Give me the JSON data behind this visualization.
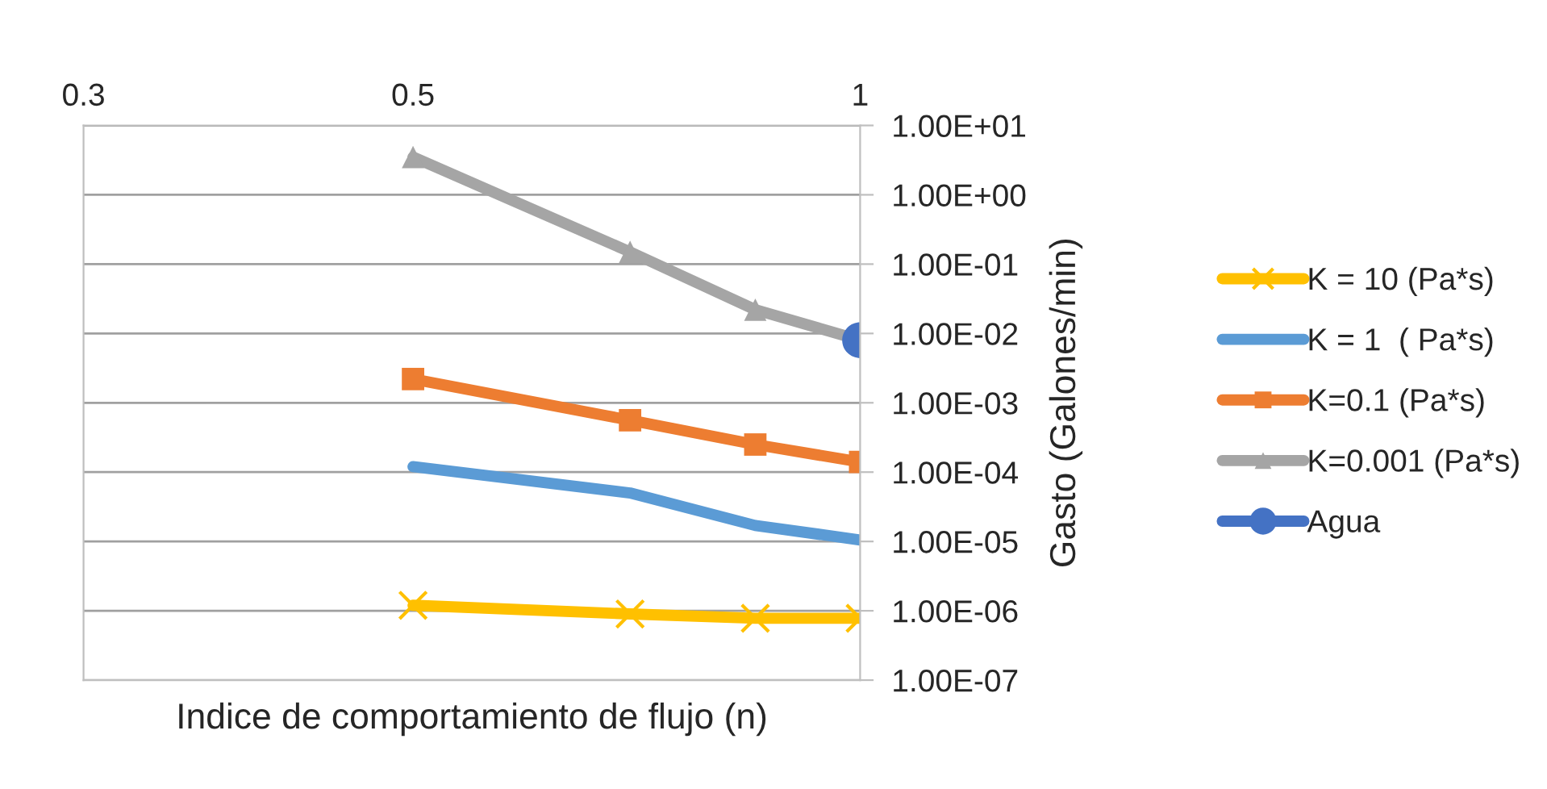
{
  "chart_data": {
    "type": "line",
    "xlabel": "Indice de comportamiento de flujo (n)",
    "ylabel": "Gasto (Galones/min)",
    "log": "xy",
    "xlim": [
      0.3,
      1
    ],
    "xticks": [
      0.3,
      0.5,
      1
    ],
    "ylim": [
      1e-07,
      10
    ],
    "yticks": [
      {
        "value": 1e-07,
        "label": "1.00E-07"
      },
      {
        "value": 1e-06,
        "label": "1.00E-06"
      },
      {
        "value": 1e-05,
        "label": "1.00E-05"
      },
      {
        "value": 0.0001,
        "label": "1.00E-04"
      },
      {
        "value": 0.001,
        "label": "1.00E-03"
      },
      {
        "value": 0.01,
        "label": "1.00E-02"
      },
      {
        "value": 0.1,
        "label": "1.00E-01"
      },
      {
        "value": 1,
        "label": "1.00E+00"
      },
      {
        "value": 10,
        "label": "1.00E+01"
      }
    ],
    "grid": "y",
    "legend": "right",
    "series": [
      {
        "name": "K = 10 (Pa*s)",
        "color": "#ffc000",
        "marker": "cross",
        "x": [
          0.5,
          0.7,
          0.85,
          1
        ],
        "values": [
          1.2e-06,
          9e-07,
          7.8e-07,
          7.8e-07
        ]
      },
      {
        "name": "K = 1  ( Pa*s)",
        "color": "#5b9bd5",
        "marker": "none",
        "x": [
          0.5,
          0.7,
          0.85,
          1
        ],
        "values": [
          0.00012,
          5e-05,
          1.7e-05,
          1.05e-05
        ]
      },
      {
        "name": "K=0.1 (Pa*s)",
        "color": "#ed7d31",
        "marker": "square",
        "x": [
          0.5,
          0.7,
          0.85,
          1
        ],
        "values": [
          0.0022,
          0.00056,
          0.00025,
          0.00014
        ]
      },
      {
        "name": "K=0.001 (Pa*s)",
        "color": "#a5a5a5",
        "marker": "triangle",
        "x": [
          0.5,
          0.7,
          0.85,
          1
        ],
        "values": [
          3.5,
          0.15,
          0.022,
          0.008
        ]
      },
      {
        "name": "Agua",
        "color": "#4472c4",
        "marker": "circle",
        "x": [
          1
        ],
        "values": [
          0.008
        ]
      }
    ]
  }
}
